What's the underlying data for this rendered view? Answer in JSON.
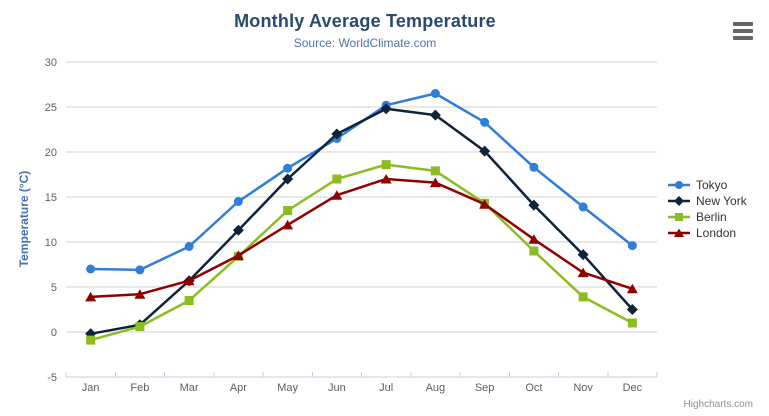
{
  "chart_data": {
    "type": "line",
    "title": "Monthly Average Temperature",
    "subtitle": "Source: WorldClimate.com",
    "categories": [
      "Jan",
      "Feb",
      "Mar",
      "Apr",
      "May",
      "Jun",
      "Jul",
      "Aug",
      "Sep",
      "Oct",
      "Nov",
      "Dec"
    ],
    "xlabel": "",
    "ylabel": "Temperature (°C)",
    "ylim": [
      -5,
      30
    ],
    "y_ticks": [
      -5,
      0,
      5,
      10,
      15,
      20,
      25,
      30
    ],
    "grid": true,
    "legend_position": "right",
    "series": [
      {
        "name": "Tokyo",
        "color": "#2f7ed8",
        "marker": "circle",
        "values": [
          7.0,
          6.9,
          9.5,
          14.5,
          18.2,
          21.5,
          25.2,
          26.5,
          23.3,
          18.3,
          13.9,
          9.6
        ]
      },
      {
        "name": "New York",
        "color": "#0d233a",
        "marker": "diamond",
        "values": [
          -0.2,
          0.8,
          5.7,
          11.3,
          17.0,
          22.0,
          24.8,
          24.1,
          20.1,
          14.1,
          8.6,
          2.5
        ]
      },
      {
        "name": "Berlin",
        "color": "#8bbc21",
        "marker": "square",
        "values": [
          -0.9,
          0.6,
          3.5,
          8.4,
          13.5,
          17.0,
          18.6,
          17.9,
          14.3,
          9.0,
          3.9,
          1.0
        ]
      },
      {
        "name": "London",
        "color": "#910000",
        "marker": "triangle",
        "values": [
          3.9,
          4.2,
          5.7,
          8.5,
          11.9,
          15.2,
          17.0,
          16.6,
          14.2,
          10.3,
          6.6,
          4.8
        ]
      }
    ],
    "credits": "Highcharts.com"
  },
  "styles": {
    "title_color": "#274b6d",
    "subtitle_color": "#4d759e",
    "axis_title_color": "#4572a7",
    "axis_label_color": "#606060",
    "gridline_color": "#d0d0d0",
    "axis_line_color": "#c0d0e0",
    "legend_text_color": "#333333",
    "credits_color": "#909090",
    "burger_color": "#666666",
    "background": "#ffffff"
  },
  "icons": {
    "export_menu": "hamburger-icon"
  }
}
